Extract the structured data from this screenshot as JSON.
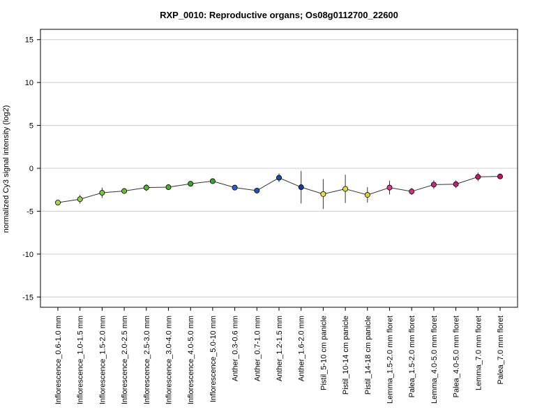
{
  "chart_data": {
    "type": "line",
    "title": "RXP_0010: Reproductive organs; Os08g0112700_22600",
    "ylabel": "normalized Cy3 signal intensity (log2)",
    "xlabel": "",
    "ylim": [
      -16.2,
      16.2
    ],
    "yticks": [
      -15,
      -10,
      -5,
      0,
      5,
      10,
      15
    ],
    "grid": true,
    "legend": "none",
    "categories": [
      "Inflorescence_0.6-1.0 mm",
      "Inflorescence_1.0-1.5 mm",
      "Inflorescence_1.5-2.0 mm",
      "Inflorescence_2.0-2.5 mm",
      "Inflorescence_2.5-3.0 mm",
      "Inflorescence_3.0-4.0 mm",
      "Inflorescence_4.0-5.0 mm",
      "Inflorescence_5.0-10 mm",
      "Anther_0.3-0.6 mm",
      "Anther_0.7-1.0 mm",
      "Anther_1.2-1.5 mm",
      "Anther_1.6-2.0 mm",
      "Pistil_5-10 cm panicle",
      "Pistil_10-14 cm panicle",
      "Pistil_14-18 cm panicle",
      "Lemma_1.5-2.0 mm floret",
      "Palea_1.5-2.0 mm floret",
      "Lemma_4.0-5.0 mm floret",
      "Palea_4.0-5.0 mm floret",
      "Lemma_7.0 mm floret",
      "Palea_7.0 mm floret"
    ],
    "values": [
      -4.0,
      -3.6,
      -2.85,
      -2.65,
      -2.25,
      -2.2,
      -1.8,
      -1.5,
      -2.25,
      -2.6,
      -1.1,
      -2.2,
      -3.0,
      -2.4,
      -3.1,
      -2.25,
      -2.7,
      -1.9,
      -1.85,
      -1.0,
      -0.95
    ],
    "errors": [
      0.15,
      0.5,
      0.6,
      0.3,
      0.4,
      0.2,
      0.15,
      0.15,
      0.2,
      0.15,
      0.5,
      1.9,
      1.75,
      1.65,
      0.9,
      0.8,
      0.4,
      0.5,
      0.45,
      0.5,
      0.2
    ],
    "point_colors": [
      "#a6d94a",
      "#8cd13e",
      "#77c832",
      "#66c02a",
      "#55b825",
      "#45b020",
      "#36aa20",
      "#2eaa2e",
      "#2b62c4",
      "#1f54b8",
      "#1848aa",
      "#123c9a",
      "#e6e04a",
      "#e1dc3c",
      "#dbd230",
      "#d63a8c",
      "#d02e80",
      "#cc2678",
      "#c82070",
      "#c41a68",
      "#c0145e"
    ],
    "line_color": "#333333",
    "grid_color": "#cccccc"
  }
}
